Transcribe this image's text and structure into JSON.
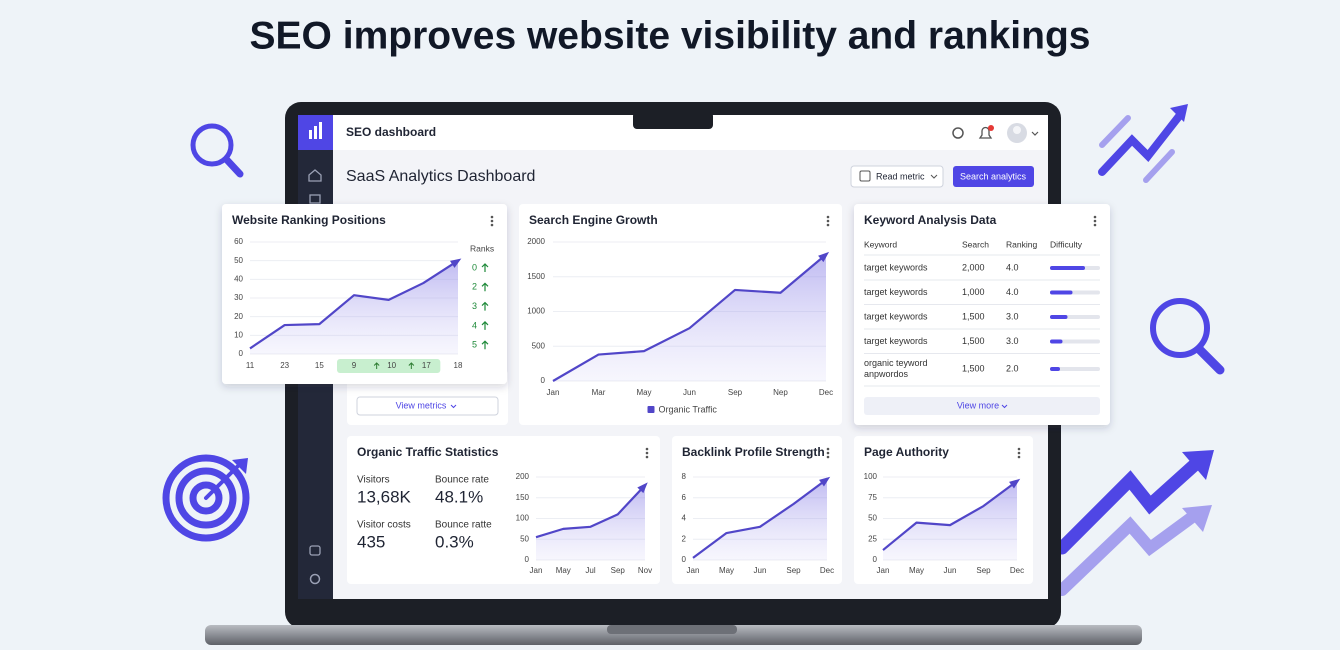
{
  "headline": "SEO improves website visibility and rankings",
  "app": {
    "name": "SEO dashboard",
    "page_title": "SaaS Analytics Dashboard",
    "buttons": [
      "Read metric",
      "Search analytics"
    ],
    "view_metrics": "View metrics"
  },
  "chart_data": [
    {
      "type": "line",
      "title": "Website Ranking Positions",
      "categories": [
        "11",
        "23",
        "15",
        "9",
        "10",
        "17",
        "18"
      ],
      "series": [
        {
          "color": "#5146c8",
          "values": [
            3,
            15.5,
            16,
            31.5,
            29,
            38,
            50
          ]
        }
      ],
      "ylim": [
        0,
        60
      ],
      "yticks": [
        0,
        10,
        20,
        30,
        40,
        50,
        60
      ],
      "ranks_label": "Ranks",
      "ranks": [
        0,
        2,
        3,
        4,
        5
      ]
    },
    {
      "type": "line",
      "title": "Search Engine Growth",
      "categories": [
        "Jan",
        "Mar",
        "May",
        "Jun",
        "Sep",
        "Nep",
        "Dec"
      ],
      "series": [
        {
          "name": "Organic Traffic",
          "color": "#5146c8",
          "values": [
            0,
            380,
            430,
            760,
            1310,
            1270,
            1820
          ]
        }
      ],
      "ylim": [
        0,
        2000
      ],
      "yticks": [
        0,
        500,
        1000,
        1500,
        2000
      ]
    },
    {
      "type": "line",
      "title": "Organic Traffic Statistics",
      "categories": [
        "Jan",
        "May",
        "Jul",
        "Sep",
        "Nov"
      ],
      "series": [
        {
          "color": "#5146c8",
          "values": [
            55,
            75,
            80,
            110,
            180
          ]
        }
      ],
      "ylim": [
        0,
        200
      ],
      "yticks": [
        0,
        50,
        100,
        150,
        200
      ]
    },
    {
      "type": "line",
      "title": "Backlink Profile Strength",
      "categories": [
        "Jan",
        "May",
        "Jun",
        "Sep",
        "Dec"
      ],
      "series": [
        {
          "color": "#5146c8",
          "values": [
            0.2,
            2.6,
            3.2,
            5.4,
            7.8
          ]
        }
      ],
      "ylim": [
        0,
        8
      ],
      "yticks": [
        0,
        2,
        4,
        6,
        8
      ]
    },
    {
      "type": "line",
      "title": "Page Authority",
      "categories": [
        "Jan",
        "May",
        "Jun",
        "Sep",
        "Dec"
      ],
      "series": [
        {
          "color": "#5146c8",
          "values": [
            12,
            45,
            42,
            65,
            95
          ]
        }
      ],
      "ylim": [
        0,
        100
      ],
      "yticks": [
        0,
        25,
        50,
        75,
        100
      ]
    }
  ],
  "traffic_stats": [
    {
      "label": "Visitors",
      "value": "13,68K"
    },
    {
      "label": "Bounce rate",
      "value": "48.1%"
    },
    {
      "label": "Visitor costs",
      "value": "435"
    },
    {
      "label": "Bounce ratte",
      "value": "0.3%"
    }
  ],
  "keyword_table": {
    "title": "Keyword Analysis Data",
    "columns": [
      "Keyword",
      "Search",
      "Ranking",
      "Difficulty"
    ],
    "rows": [
      {
        "keyword": [
          "target keywords"
        ],
        "search": "2,000",
        "ranking": "4.0",
        "difficulty": 70
      },
      {
        "keyword": [
          "target keywords"
        ],
        "search": "1,000",
        "ranking": "4.0",
        "difficulty": 45
      },
      {
        "keyword": [
          "target keywords"
        ],
        "search": "1,500",
        "ranking": "3.0",
        "difficulty": 35
      },
      {
        "keyword": [
          "target keywords"
        ],
        "search": "1,500",
        "ranking": "3.0",
        "difficulty": 25
      },
      {
        "keyword": [
          "organic teyword",
          "anpwordos"
        ],
        "search": "1,500",
        "ranking": "2.0",
        "difficulty": 20
      }
    ],
    "view_more": "View more"
  }
}
